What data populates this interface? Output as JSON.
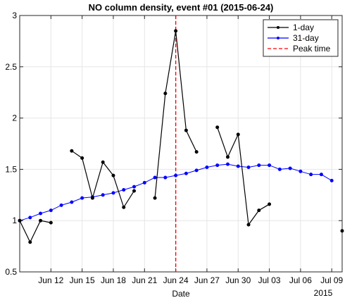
{
  "colors": {
    "series_1day": "#000000",
    "series_31day": "#0000ff",
    "peak_line": "#ff0000",
    "grid": "#e6e6e6",
    "axes": "#262626"
  },
  "chart_data": {
    "type": "line",
    "title": "NO column density, event #01 (2015-06-24)",
    "xlabel": "Date",
    "ylabel": "",
    "year_label": "2015",
    "x_axis": {
      "type": "date",
      "start": "2015-06-09",
      "end": "2015-07-10"
    },
    "ylim": [
      0.5,
      3
    ],
    "yticks": [
      0.5,
      1,
      1.5,
      2,
      2.5,
      3
    ],
    "ytick_labels": [
      "0.5",
      "1",
      "1.5",
      "2",
      "2.5",
      "3"
    ],
    "xticks": [
      "2015-06-12",
      "2015-06-15",
      "2015-06-18",
      "2015-06-21",
      "2015-06-24",
      "2015-06-27",
      "2015-06-30",
      "2015-07-03",
      "2015-07-06",
      "2015-07-09"
    ],
    "xtick_labels": [
      "Jun 12",
      "Jun 15",
      "Jun 18",
      "Jun 21",
      "Jun 24",
      "Jun 27",
      "Jun 30",
      "Jul 03",
      "Jul 06",
      "Jul 09"
    ],
    "grid": true,
    "legend_position": "top-right",
    "peak_time": {
      "name": "Peak time",
      "date": "2015-06-24"
    },
    "series": [
      {
        "name": "1-day",
        "style": "solid line with dots",
        "points": [
          [
            "2015-06-09",
            1.0
          ],
          [
            "2015-06-10",
            0.79
          ],
          [
            "2015-06-11",
            1.0
          ],
          [
            "2015-06-12",
            0.98
          ],
          [
            "2015-06-13",
            null
          ],
          [
            "2015-06-14",
            1.68
          ],
          [
            "2015-06-15",
            1.61
          ],
          [
            "2015-06-16",
            1.22
          ],
          [
            "2015-06-17",
            1.57
          ],
          [
            "2015-06-18",
            1.44
          ],
          [
            "2015-06-19",
            1.13
          ],
          [
            "2015-06-20",
            1.29
          ],
          [
            "2015-06-21",
            null
          ],
          [
            "2015-06-22",
            1.22
          ],
          [
            "2015-06-23",
            2.24
          ],
          [
            "2015-06-24",
            2.85
          ],
          [
            "2015-06-25",
            1.88
          ],
          [
            "2015-06-26",
            1.67
          ],
          [
            "2015-06-27",
            null
          ],
          [
            "2015-06-28",
            1.91
          ],
          [
            "2015-06-29",
            1.62
          ],
          [
            "2015-06-30",
            1.84
          ],
          [
            "2015-07-01",
            0.96
          ],
          [
            "2015-07-02",
            1.1
          ],
          [
            "2015-07-03",
            1.16
          ],
          [
            "2015-07-04",
            null
          ],
          [
            "2015-07-10",
            0.9
          ]
        ]
      },
      {
        "name": "31-day",
        "style": "line with dots",
        "points": [
          [
            "2015-06-09",
            1.0
          ],
          [
            "2015-06-10",
            1.03
          ],
          [
            "2015-06-11",
            1.07
          ],
          [
            "2015-06-12",
            1.1
          ],
          [
            "2015-06-13",
            1.15
          ],
          [
            "2015-06-14",
            1.18
          ],
          [
            "2015-06-15",
            1.22
          ],
          [
            "2015-06-16",
            1.23
          ],
          [
            "2015-06-17",
            1.25
          ],
          [
            "2015-06-18",
            1.27
          ],
          [
            "2015-06-19",
            1.3
          ],
          [
            "2015-06-20",
            1.33
          ],
          [
            "2015-06-21",
            1.37
          ],
          [
            "2015-06-22",
            1.42
          ],
          [
            "2015-06-23",
            1.42
          ],
          [
            "2015-06-24",
            1.44
          ],
          [
            "2015-06-25",
            1.46
          ],
          [
            "2015-06-26",
            1.49
          ],
          [
            "2015-06-27",
            1.52
          ],
          [
            "2015-06-28",
            1.54
          ],
          [
            "2015-06-29",
            1.55
          ],
          [
            "2015-06-30",
            1.53
          ],
          [
            "2015-07-01",
            1.52
          ],
          [
            "2015-07-02",
            1.54
          ],
          [
            "2015-07-03",
            1.54
          ],
          [
            "2015-07-04",
            1.5
          ],
          [
            "2015-07-05",
            1.51
          ],
          [
            "2015-07-06",
            1.48
          ],
          [
            "2015-07-07",
            1.45
          ],
          [
            "2015-07-08",
            1.45
          ],
          [
            "2015-07-09",
            1.39
          ]
        ]
      }
    ]
  }
}
